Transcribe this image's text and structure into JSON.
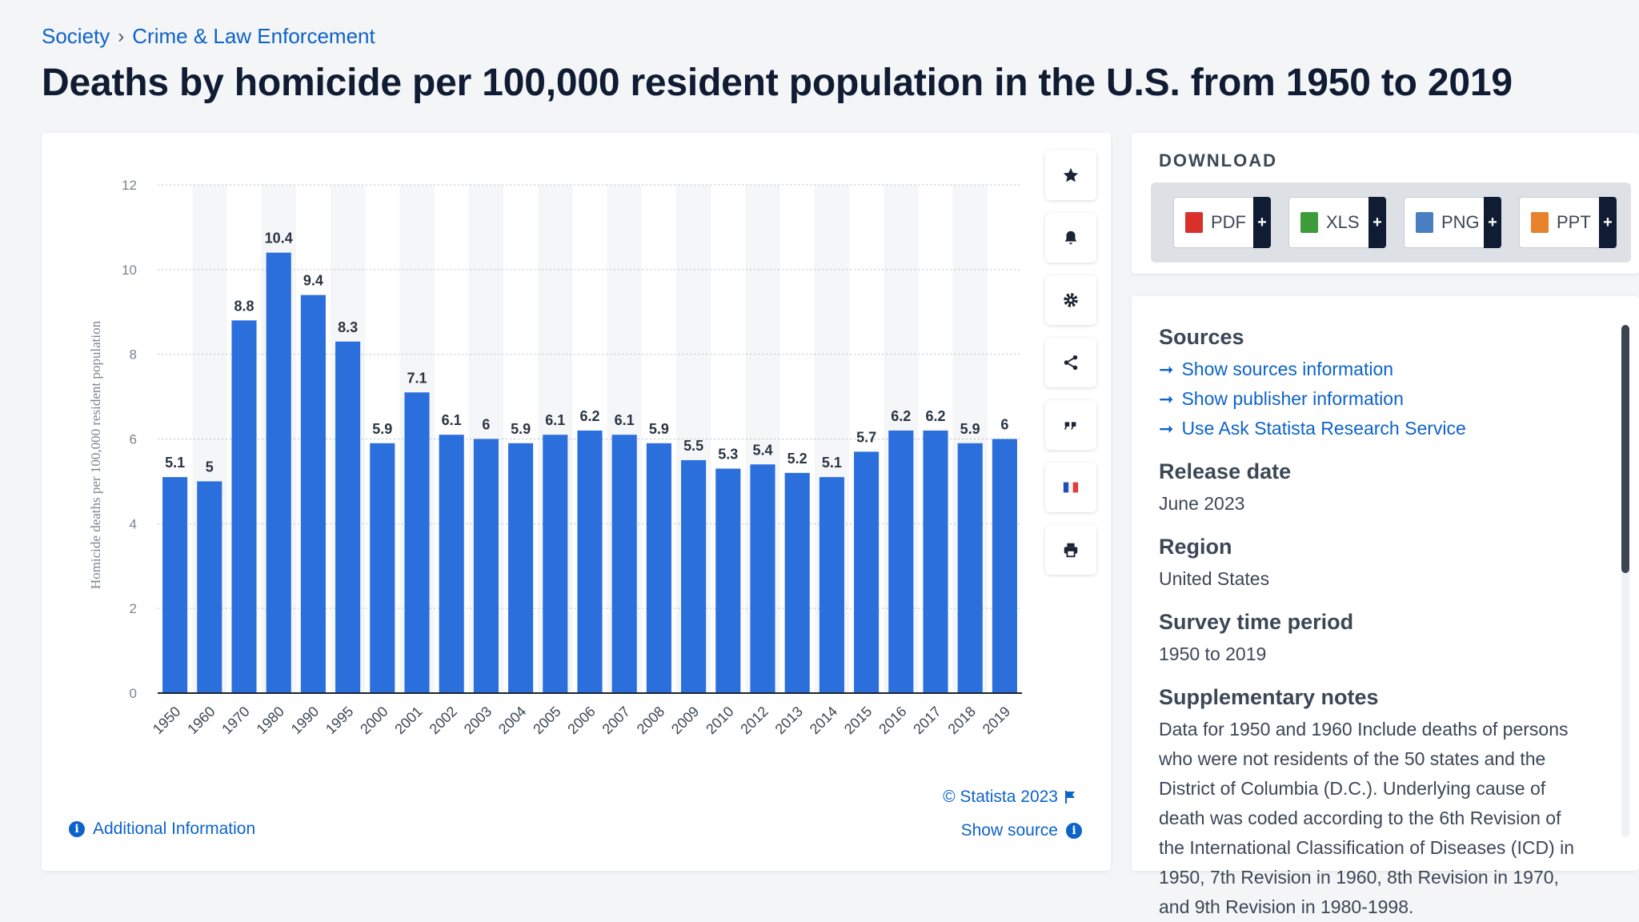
{
  "breadcrumb": {
    "item1": "Society",
    "separator": "›",
    "item2": "Crime & Law Enforcement"
  },
  "title": "Deaths by homicide per 100,000 resident population in the U.S. from 1950 to 2019",
  "chart_data": {
    "type": "bar",
    "categories": [
      "1950",
      "1960",
      "1970",
      "1980",
      "1990",
      "1995",
      "2000",
      "2001",
      "2002",
      "2003",
      "2004",
      "2005",
      "2006",
      "2007",
      "2008",
      "2009",
      "2010",
      "2012",
      "2013",
      "2014",
      "2015",
      "2016",
      "2017",
      "2018",
      "2019"
    ],
    "values": [
      5.1,
      5,
      8.8,
      10.4,
      9.4,
      8.3,
      5.9,
      7.1,
      6.1,
      6,
      5.9,
      6.1,
      6.2,
      6.1,
      5.9,
      5.5,
      5.3,
      5.4,
      5.2,
      5.1,
      5.7,
      6.2,
      6.2,
      5.9,
      6
    ],
    "ylabel": "Homicide deaths per 100,000 resident population",
    "xlabel": "",
    "ylim": [
      0,
      12
    ],
    "yticks": [
      0,
      2,
      4,
      6,
      8,
      10,
      12
    ],
    "bar_color": "#2b6fdc",
    "grid": true
  },
  "tools": {
    "favorite": "star-icon",
    "alert": "bell-icon",
    "settings": "gear-icon",
    "share": "share-icon",
    "cite": "quote-icon",
    "language": "flag-icon",
    "print": "print-icon"
  },
  "footer": {
    "copyright": "© Statista 2023",
    "show_source": "Show source",
    "additional_info": "Additional Information"
  },
  "download": {
    "title": "DOWNLOAD",
    "buttons": [
      {
        "label": "PDF",
        "color": "#d9302c"
      },
      {
        "label": "XLS",
        "color": "#3e9b3a"
      },
      {
        "label": "PNG",
        "color": "#4a7fc1"
      },
      {
        "label": "PPT",
        "color": "#e8822c"
      }
    ],
    "plus": "+"
  },
  "info": {
    "sources_heading": "Sources",
    "links": [
      "Show sources information",
      "Show publisher information",
      "Use Ask Statista Research Service"
    ],
    "release_heading": "Release date",
    "release_value": "June 2023",
    "region_heading": "Region",
    "region_value": "United States",
    "period_heading": "Survey time period",
    "period_value": "1950 to 2019",
    "notes_heading": "Supplementary notes",
    "notes_text": "Data for 1950 and 1960 Include deaths of persons who were not residents of the 50 states and the District of Columbia (D.C.). Underlying cause of death was coded according to the 6th Revision of the International Classification of Diseases (ICD) in 1950, 7th Revision in 1960, 8th Revision in 1970, and 9th Revision in 1980-1998."
  }
}
